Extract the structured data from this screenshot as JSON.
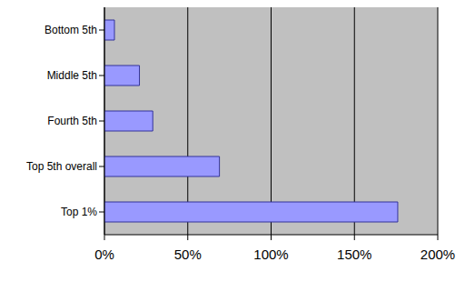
{
  "chart_data": {
    "type": "bar",
    "orientation": "horizontal",
    "categories": [
      "Bottom 5th",
      "Middle 5th",
      "Fourth 5th",
      "Top 5th overall",
      "Top 1%"
    ],
    "values": [
      6,
      21,
      29,
      69,
      176
    ],
    "color": "#9999ff",
    "xlim": [
      0,
      200
    ],
    "xticks": [
      {
        "value": 0,
        "label": "0%"
      },
      {
        "value": 50,
        "label": "50%"
      },
      {
        "value": 100,
        "label": "100%"
      },
      {
        "value": 150,
        "label": "150%"
      },
      {
        "value": 200,
        "label": "200%"
      }
    ],
    "grid": true
  }
}
